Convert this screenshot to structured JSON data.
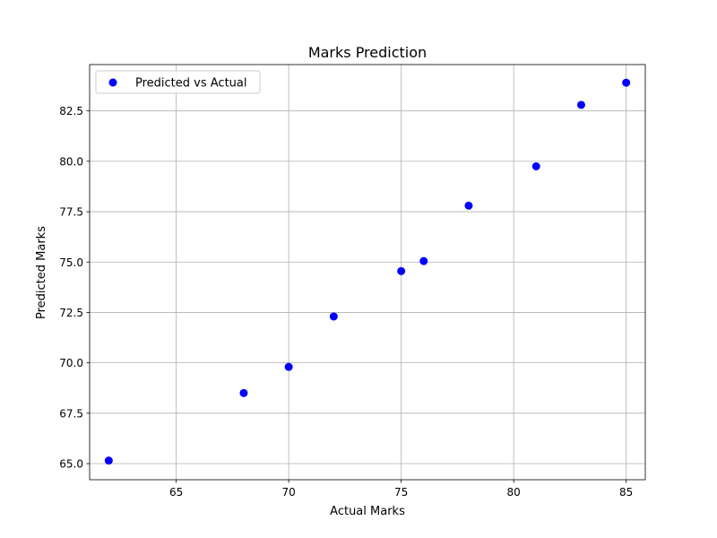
{
  "chart_data": {
    "type": "scatter",
    "title": "Marks Prediction",
    "xlabel": "Actual Marks",
    "ylabel": "Predicted Marks",
    "xlim": [
      61.15,
      85.85
    ],
    "ylim": [
      64.2,
      84.8
    ],
    "xticks": [
      65,
      70,
      75,
      80,
      85
    ],
    "xtick_labels": [
      "65",
      "70",
      "75",
      "80",
      "85"
    ],
    "yticks": [
      65.0,
      67.5,
      70.0,
      72.5,
      75.0,
      77.5,
      80.0,
      82.5
    ],
    "ytick_labels": [
      "65.0",
      "67.5",
      "70.0",
      "72.5",
      "75.0",
      "77.5",
      "80.0",
      "82.5"
    ],
    "grid": true,
    "legend_position": "top-left",
    "series": [
      {
        "name": "Predicted vs Actual",
        "color": "#0000ff",
        "x": [
          62,
          68,
          70,
          72,
          75,
          76,
          78,
          81,
          83,
          85
        ],
        "y": [
          65.15,
          68.5,
          69.8,
          72.3,
          74.55,
          75.05,
          77.8,
          79.75,
          82.8,
          83.9
        ]
      }
    ]
  }
}
